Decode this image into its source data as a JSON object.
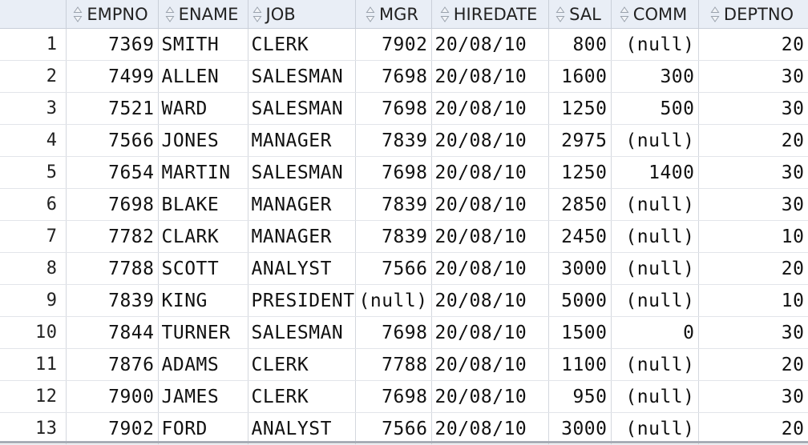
{
  "columns": [
    {
      "label": "EMPNO"
    },
    {
      "label": "ENAME"
    },
    {
      "label": "JOB"
    },
    {
      "label": "MGR"
    },
    {
      "label": "HIREDATE"
    },
    {
      "label": "SAL"
    },
    {
      "label": "COMM"
    },
    {
      "label": "DEPTNO"
    }
  ],
  "rows": [
    {
      "n": "1",
      "empno": "7369",
      "ename": "SMITH",
      "job": "CLERK",
      "mgr": "7902",
      "hiredate": "20/08/10",
      "sal": "800",
      "comm": "(null)",
      "deptno": "20"
    },
    {
      "n": "2",
      "empno": "7499",
      "ename": "ALLEN",
      "job": "SALESMAN",
      "mgr": "7698",
      "hiredate": "20/08/10",
      "sal": "1600",
      "comm": "300",
      "deptno": "30"
    },
    {
      "n": "3",
      "empno": "7521",
      "ename": "WARD",
      "job": "SALESMAN",
      "mgr": "7698",
      "hiredate": "20/08/10",
      "sal": "1250",
      "comm": "500",
      "deptno": "30"
    },
    {
      "n": "4",
      "empno": "7566",
      "ename": "JONES",
      "job": "MANAGER",
      "mgr": "7839",
      "hiredate": "20/08/10",
      "sal": "2975",
      "comm": "(null)",
      "deptno": "20"
    },
    {
      "n": "5",
      "empno": "7654",
      "ename": "MARTIN",
      "job": "SALESMAN",
      "mgr": "7698",
      "hiredate": "20/08/10",
      "sal": "1250",
      "comm": "1400",
      "deptno": "30"
    },
    {
      "n": "6",
      "empno": "7698",
      "ename": "BLAKE",
      "job": "MANAGER",
      "mgr": "7839",
      "hiredate": "20/08/10",
      "sal": "2850",
      "comm": "(null)",
      "deptno": "30"
    },
    {
      "n": "7",
      "empno": "7782",
      "ename": "CLARK",
      "job": "MANAGER",
      "mgr": "7839",
      "hiredate": "20/08/10",
      "sal": "2450",
      "comm": "(null)",
      "deptno": "10"
    },
    {
      "n": "8",
      "empno": "7788",
      "ename": "SCOTT",
      "job": "ANALYST",
      "mgr": "7566",
      "hiredate": "20/08/10",
      "sal": "3000",
      "comm": "(null)",
      "deptno": "20"
    },
    {
      "n": "9",
      "empno": "7839",
      "ename": "KING",
      "job": "PRESIDENT",
      "mgr": "(null)",
      "hiredate": "20/08/10",
      "sal": "5000",
      "comm": "(null)",
      "deptno": "10"
    },
    {
      "n": "10",
      "empno": "7844",
      "ename": "TURNER",
      "job": "SALESMAN",
      "mgr": "7698",
      "hiredate": "20/08/10",
      "sal": "1500",
      "comm": "0",
      "deptno": "30"
    },
    {
      "n": "11",
      "empno": "7876",
      "ename": "ADAMS",
      "job": "CLERK",
      "mgr": "7788",
      "hiredate": "20/08/10",
      "sal": "1100",
      "comm": "(null)",
      "deptno": "20"
    },
    {
      "n": "12",
      "empno": "7900",
      "ename": "JAMES",
      "job": "CLERK",
      "mgr": "7698",
      "hiredate": "20/08/10",
      "sal": "950",
      "comm": "(null)",
      "deptno": "30"
    },
    {
      "n": "13",
      "empno": "7902",
      "ename": "FORD",
      "job": "ANALYST",
      "mgr": "7566",
      "hiredate": "20/08/10",
      "sal": "3000",
      "comm": "(null)",
      "deptno": "20"
    }
  ]
}
